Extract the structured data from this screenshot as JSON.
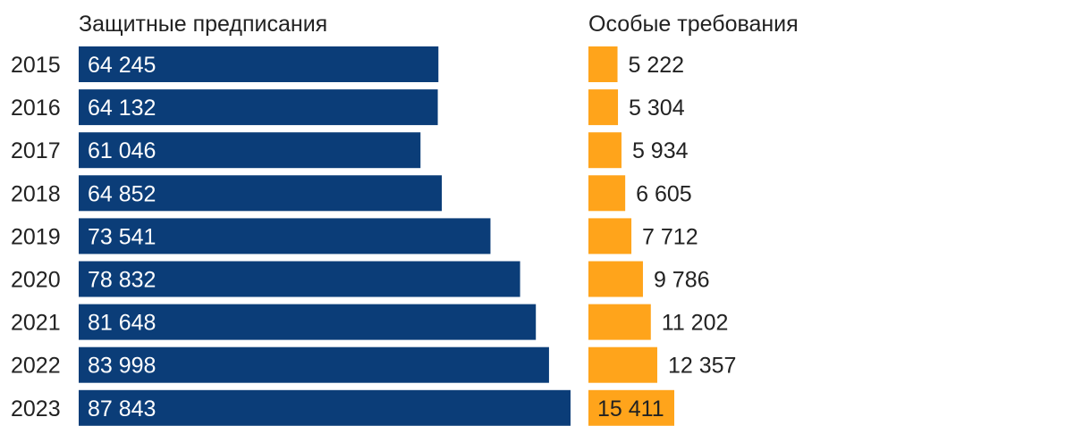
{
  "chart_data": {
    "type": "bar",
    "orientation": "horizontal",
    "categories": [
      "2015",
      "2016",
      "2017",
      "2018",
      "2019",
      "2020",
      "2021",
      "2022",
      "2023"
    ],
    "series": [
      {
        "name": "Защитные предписания",
        "values": [
          64245,
          64132,
          61046,
          64852,
          73541,
          78832,
          81648,
          83998,
          87843
        ],
        "labels": [
          "64 245",
          "64 132",
          "61 046",
          "64 852",
          "73 541",
          "78 832",
          "81 648",
          "83 998",
          "87 843"
        ],
        "color": "#0b3d78",
        "label_color": "#ffffff",
        "label_position": "inside-start"
      },
      {
        "name": "Особые требования",
        "values": [
          5222,
          5304,
          5934,
          6605,
          7712,
          9786,
          11202,
          12357,
          15411
        ],
        "labels": [
          "5 222",
          "5 304",
          "5 934",
          "6 605",
          "7 712",
          "9 786",
          "11 202",
          "12 357",
          "15 411"
        ],
        "color": "#ffa41b",
        "label_color": "#222222",
        "label_position": "outside-end"
      }
    ],
    "grid": false,
    "legend": "none"
  }
}
